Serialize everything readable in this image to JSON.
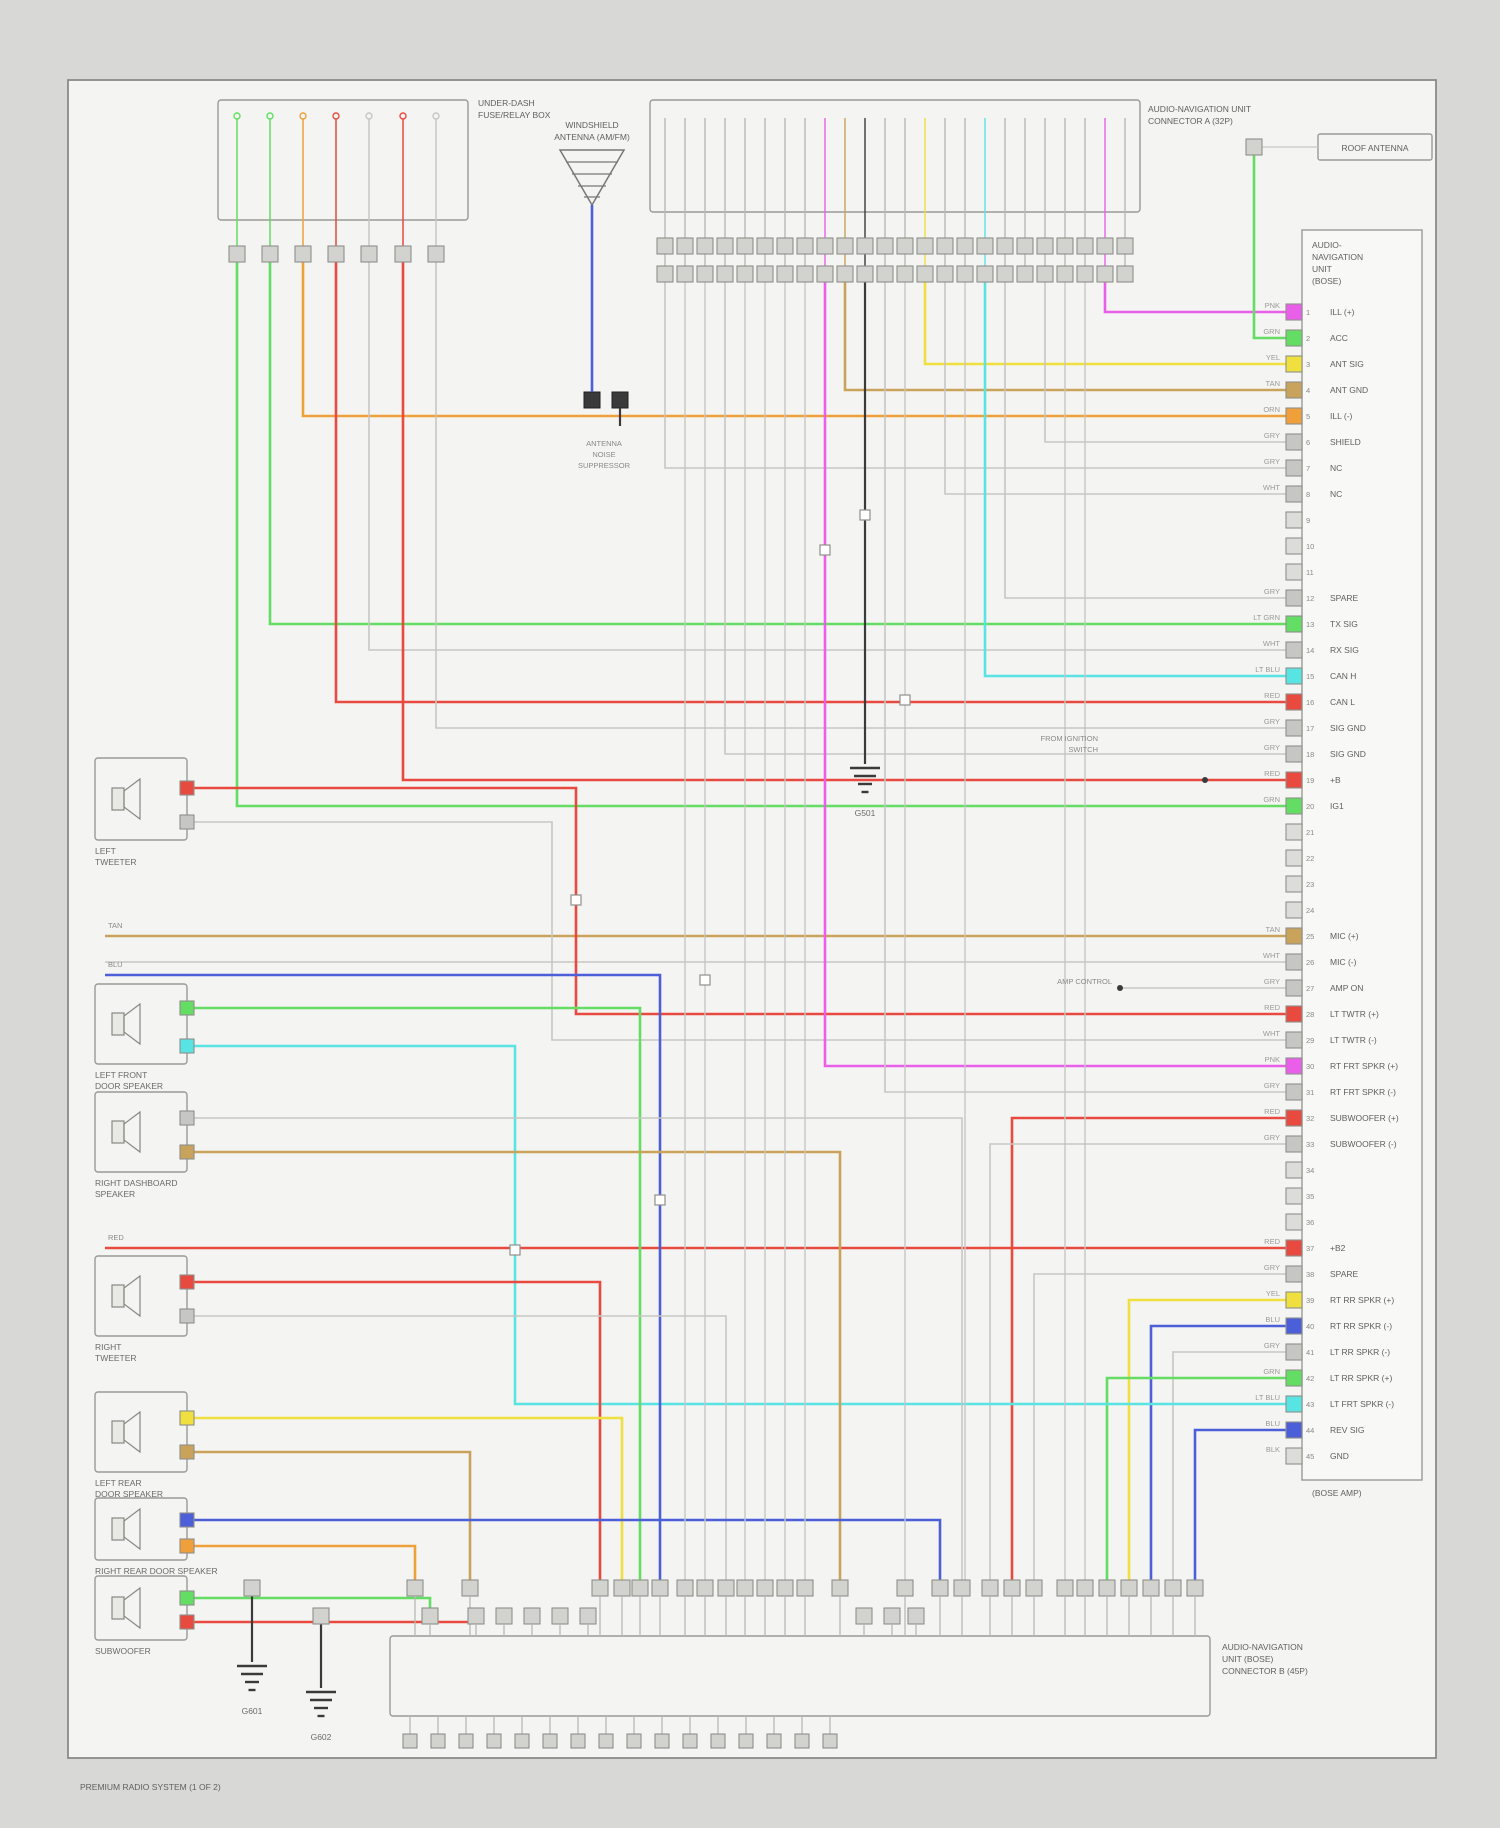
{
  "page": {
    "footer_left": "PREMIUM RADIO SYSTEM (1 OF 2)"
  },
  "palette": {
    "red": "#e84a40",
    "green": "#63dd63",
    "yellow": "#efdf3f",
    "blue": "#4a5fd8",
    "cyan": "#59e4e4",
    "magenta": "#ea5fea",
    "orange": "#efa03a",
    "tan": "#c9a35c",
    "gray": "#c6c6c2",
    "black": "#3a3a3a"
  },
  "fuse_box": {
    "label_lines": [
      "UNDER-DASH",
      "FUSE/RELAY BOX"
    ]
  },
  "antenna": {
    "label_lines": [
      "WINDSHIELD",
      "ANTENNA (AM/FM)"
    ],
    "suppressor_lines": [
      "ANTENNA",
      "NOISE",
      "SUPPRESSOR"
    ]
  },
  "roof_antenna": {
    "label": "ROOF ANTENNA"
  },
  "top_connector": {
    "label_lines": [
      "AUDIO-NAVIGATION UNIT",
      "CONNECTOR A (32P)"
    ]
  },
  "audio_unit": {
    "header_lines": [
      "AUDIO-",
      "NAVIGATION",
      "UNIT",
      "(BOSE)"
    ],
    "footer": "(BOSE AMP)",
    "terminals": [
      {
        "pin": "1",
        "w": "PNK",
        "label": "ILL (+)",
        "color": "magenta"
      },
      {
        "pin": "2",
        "w": "GRN",
        "label": "ACC",
        "color": "green"
      },
      {
        "pin": "3",
        "w": "YEL",
        "label": "ANT SIG",
        "color": "yellow"
      },
      {
        "pin": "4",
        "w": "TAN",
        "label": "ANT GND",
        "color": "tan"
      },
      {
        "pin": "5",
        "w": "ORN",
        "label": "ILL (-)",
        "color": "orange"
      },
      {
        "pin": "6",
        "w": "GRY",
        "label": "SHIELD",
        "color": "gray"
      },
      {
        "pin": "7",
        "w": "GRY",
        "label": "NC",
        "color": "gray"
      },
      {
        "pin": "8",
        "w": "WHT",
        "label": "NC",
        "color": "gray"
      },
      {
        "pin": "9",
        "w": "",
        "label": "",
        "color": null
      },
      {
        "pin": "10",
        "w": "",
        "label": "",
        "color": null
      },
      {
        "pin": "11",
        "w": "",
        "label": "",
        "color": null
      },
      {
        "pin": "12",
        "w": "GRY",
        "label": "SPARE",
        "color": "gray"
      },
      {
        "pin": "13",
        "w": "LT GRN",
        "label": "TX SIG",
        "color": "green"
      },
      {
        "pin": "14",
        "w": "WHT",
        "label": "RX SIG",
        "color": "gray"
      },
      {
        "pin": "15",
        "w": "LT BLU",
        "label": "CAN H",
        "color": "cyan"
      },
      {
        "pin": "16",
        "w": "RED",
        "label": "CAN L",
        "color": "red"
      },
      {
        "pin": "17",
        "w": "GRY",
        "label": "SIG GND",
        "color": "gray"
      },
      {
        "pin": "18",
        "w": "GRY",
        "label": "SIG GND",
        "color": "gray"
      },
      {
        "pin": "19",
        "w": "RED",
        "label": "+B",
        "color": "red"
      },
      {
        "pin": "20",
        "w": "GRN",
        "label": "IG1",
        "color": "green"
      },
      {
        "pin": "21",
        "w": "",
        "label": "",
        "color": null
      },
      {
        "pin": "22",
        "w": "",
        "label": "",
        "color": null
      },
      {
        "pin": "23",
        "w": "",
        "label": "",
        "color": null
      },
      {
        "pin": "24",
        "w": "",
        "label": "",
        "color": null
      },
      {
        "pin": "25",
        "w": "TAN",
        "label": "MIC (+)",
        "color": "tan"
      },
      {
        "pin": "26",
        "w": "WHT",
        "label": "MIC (-)",
        "color": "gray"
      },
      {
        "pin": "27",
        "w": "GRY",
        "label": "AMP ON",
        "color": "gray"
      },
      {
        "pin": "28",
        "w": "RED",
        "label": "LT TWTR (+)",
        "color": "red"
      },
      {
        "pin": "29",
        "w": "WHT",
        "label": "LT TWTR (-)",
        "color": "gray"
      },
      {
        "pin": "30",
        "w": "PNK",
        "label": "RT FRT SPKR (+)",
        "color": "magenta"
      },
      {
        "pin": "31",
        "w": "GRY",
        "label": "RT FRT SPKR (-)",
        "color": "gray"
      },
      {
        "pin": "32",
        "w": "RED",
        "label": "SUBWOOFER (+)",
        "color": "red"
      },
      {
        "pin": "33",
        "w": "GRY",
        "label": "SUBWOOFER (-)",
        "color": "gray"
      },
      {
        "pin": "34",
        "w": "",
        "label": "",
        "color": null
      },
      {
        "pin": "35",
        "w": "",
        "label": "",
        "color": null
      },
      {
        "pin": "36",
        "w": "",
        "label": "",
        "color": null
      },
      {
        "pin": "37",
        "w": "RED",
        "label": "+B2",
        "color": "red"
      },
      {
        "pin": "38",
        "w": "GRY",
        "label": "SPARE",
        "color": "gray"
      },
      {
        "pin": "39",
        "w": "YEL",
        "label": "RT RR SPKR (+)",
        "color": "yellow"
      },
      {
        "pin": "40",
        "w": "BLU",
        "label": "RT RR SPKR (-)",
        "color": "blue"
      },
      {
        "pin": "41",
        "w": "GRY",
        "label": "LT RR SPKR (-)",
        "color": "gray"
      },
      {
        "pin": "42",
        "w": "GRN",
        "label": "LT RR SPKR (+)",
        "color": "green"
      },
      {
        "pin": "43",
        "w": "LT BLU",
        "label": "LT FRT SPKR (-)",
        "color": "cyan"
      },
      {
        "pin": "44",
        "w": "BLU",
        "label": "REV SIG",
        "color": "blue"
      },
      {
        "pin": "45",
        "w": "BLK",
        "label": "GND",
        "color": null
      }
    ]
  },
  "floating": {
    "ignition_lines": [
      "FROM IGNITION",
      "SWITCH"
    ],
    "amp_control": "AMP CONTROL"
  },
  "bus_labels": {
    "tan": "TAN",
    "blu": "BLU",
    "red": "RED"
  },
  "speakers": [
    {
      "lines": [
        "LEFT",
        "TWEETER"
      ],
      "wires": [
        "red",
        "gray"
      ]
    },
    {
      "lines": [
        "LEFT FRONT",
        "DOOR SPEAKER"
      ],
      "wires": [
        "green",
        "cyan"
      ]
    },
    {
      "lines": [
        "RIGHT DASHBOARD",
        "SPEAKER"
      ],
      "wires": [
        "gray",
        "tan"
      ]
    },
    {
      "lines": [
        "RIGHT",
        "TWEETER"
      ],
      "wires": [
        "red",
        "gray"
      ]
    },
    {
      "lines": [
        "LEFT REAR",
        "DOOR SPEAKER"
      ],
      "wires": [
        "yellow",
        "tan"
      ]
    },
    {
      "lines": [
        "RIGHT REAR DOOR SPEAKER"
      ],
      "wires": [
        "blue",
        "orange"
      ]
    },
    {
      "lines": [
        "SUBWOOFER"
      ],
      "wires": [
        "green",
        "red"
      ]
    }
  ],
  "grounds": [
    {
      "id": "G501"
    },
    {
      "id": "G601"
    },
    {
      "id": "G602"
    }
  ],
  "bottom_connector": {
    "label_lines": [
      "AUDIO-NAVIGATION",
      "UNIT (BOSE)",
      "CONNECTOR B (45P)"
    ]
  }
}
